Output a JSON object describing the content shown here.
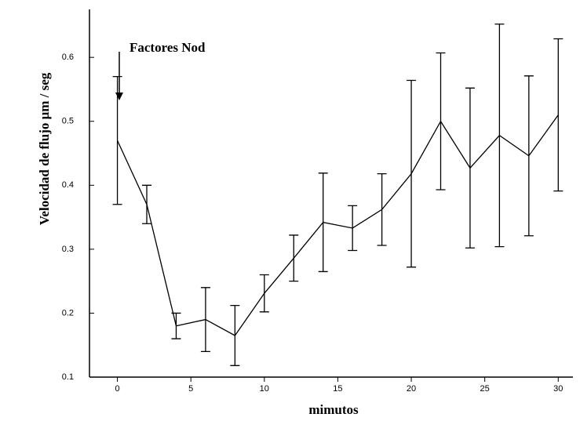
{
  "chart_data": {
    "type": "line",
    "xlabel": "mimutos",
    "ylabel": "Velocidad de flujo  μm / seg",
    "annotation": "Factores Nod",
    "x": [
      0,
      2,
      4,
      6,
      8,
      10,
      12,
      14,
      16,
      18,
      20,
      22,
      24,
      26,
      28,
      30
    ],
    "series": [
      {
        "color": "#000000",
        "values": [
          0.47,
          0.37,
          0.18,
          0.19,
          0.165,
          0.231,
          0.286,
          0.342,
          0.333,
          0.362,
          0.418,
          0.5,
          0.427,
          0.478,
          0.446,
          0.51
        ],
        "errors": [
          0.1,
          0.03,
          0.02,
          0.05,
          0.047,
          0.029,
          0.036,
          0.077,
          0.035,
          0.056,
          0.146,
          0.107,
          0.125,
          0.174,
          0.125,
          0.119
        ]
      }
    ],
    "xlim": [
      -1.9,
      31
    ],
    "ylim": [
      0.1,
      0.675
    ],
    "xticks": [
      0,
      5,
      10,
      15,
      20,
      25,
      30
    ],
    "yticks": [
      0.1,
      0.2,
      0.3,
      0.4,
      0.5,
      0.6
    ]
  }
}
